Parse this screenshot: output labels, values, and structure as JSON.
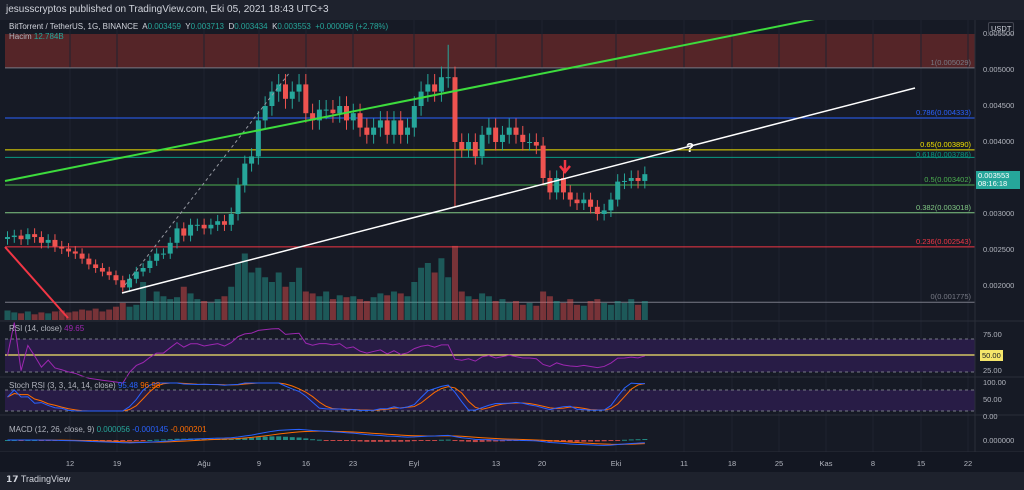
{
  "header": {
    "publish_line": "jesusscryptos published on TradingView.com, Eki 05, 2021 18:43 UTC+3"
  },
  "legend": {
    "symbol": "BitTorrent / TetherUS, 1G, BINANCE",
    "o_label": "A",
    "o": "0.003459",
    "h_label": "Y",
    "h": "0.003713",
    "l_label": "D",
    "l": "0.003434",
    "c_label": "K",
    "c": "0.003553",
    "change": "+0.000096 (+2.78%)",
    "volume_label": "Hacim",
    "volume": "12.784B"
  },
  "price_axis": {
    "unit": "USDT",
    "ticks": [
      "0.005500",
      "0.005000",
      "0.004500",
      "0.004000",
      "0.003000",
      "0.002500",
      "0.002000"
    ],
    "current_price": "0.003553",
    "countdown": "08:16:18"
  },
  "fib_levels": [
    {
      "label": "1(0.005029)",
      "value": 0.005029,
      "color": "#787b86"
    },
    {
      "label": "0.786(0.004333)",
      "value": 0.004333,
      "color": "#2962ff"
    },
    {
      "label": "0.65(0.003890)",
      "value": 0.00389,
      "color": "#f0e000"
    },
    {
      "label": "0.618(0.003786)",
      "value": 0.003786,
      "color": "#089981"
    },
    {
      "label": "0.5(0.003402)",
      "value": 0.003402,
      "color": "#4caf50"
    },
    {
      "label": "0.382(0.003018)",
      "value": 0.003018,
      "color": "#81c784"
    },
    {
      "label": "0.236(0.002543)",
      "value": 0.002543,
      "color": "#f23645"
    },
    {
      "label": "0(0.001775)",
      "value": 0.001775,
      "color": "#787b86"
    }
  ],
  "time_axis": [
    "12",
    "19",
    "Ağu",
    "9",
    "16",
    "23",
    "Eyl",
    "13",
    "20",
    "Eki",
    "11",
    "18",
    "25",
    "Kas",
    "8",
    "15",
    "22"
  ],
  "rsi": {
    "title": "RSI (14, close)",
    "value": "49.65",
    "ticks": [
      "75.00",
      "50.00",
      "25.00"
    ],
    "badge": "50.00"
  },
  "stoch": {
    "title": "Stoch RSI (3, 3, 14, 14, close)",
    "k": "95.48",
    "d": "96.98",
    "ticks": [
      "100.00",
      "50.00",
      "0.00"
    ]
  },
  "macd": {
    "title": "MACD (12, 26, close, 9)",
    "hist": "0.000056",
    "macd": "-0.000145",
    "signal": "-0.000201",
    "tick": "0.000000"
  },
  "annotation": {
    "question": "?"
  },
  "colors": {
    "up": "#26a69a",
    "down": "#ef5350",
    "bg": "#161a25"
  },
  "chart_data": {
    "type": "candlestick",
    "start_date": "Jul 3",
    "closes": [
      2680,
      2700,
      2650,
      2720,
      2680,
      2600,
      2640,
      2550,
      2520,
      2480,
      2450,
      2380,
      2300,
      2250,
      2200,
      2150,
      2080,
      1980,
      2100,
      2200,
      2250,
      2350,
      2450,
      2450,
      2600,
      2800,
      2700,
      2850,
      2850,
      2800,
      2850,
      2900,
      2850,
      3000,
      3400,
      3700,
      3800,
      4300,
      4500,
      4700,
      4800,
      4600,
      4700,
      4800,
      4400,
      4300,
      4450,
      4450,
      4400,
      4500,
      4300,
      4400,
      4200,
      4100,
      4200,
      4300,
      4100,
      4300,
      4100,
      4200,
      4500,
      4700,
      4800,
      4700,
      4900,
      4900,
      4000,
      3900,
      4000,
      3800,
      4100,
      4200,
      4000,
      4100,
      4200,
      4100,
      4000,
      4000,
      3950,
      3500,
      3300,
      3500,
      3300,
      3200,
      3150,
      3200,
      3100,
      3000,
      3050,
      3200,
      3450,
      3459,
      3500,
      3459,
      3553
    ],
    "volumes": [
      10,
      8,
      7,
      9,
      6,
      8,
      7,
      9,
      10,
      8,
      9,
      11,
      10,
      12,
      9,
      11,
      14,
      18,
      14,
      16,
      40,
      20,
      30,
      25,
      22,
      24,
      35,
      28,
      22,
      20,
      18,
      22,
      25,
      35,
      60,
      70,
      50,
      55,
      45,
      40,
      50,
      35,
      40,
      55,
      30,
      28,
      25,
      30,
      22,
      26,
      24,
      25,
      22,
      20,
      24,
      28,
      26,
      30,
      28,
      25,
      40,
      55,
      60,
      50,
      65,
      45,
      78,
      30,
      25,
      22,
      28,
      25,
      20,
      22,
      18,
      20,
      16,
      18,
      15,
      30,
      25,
      20,
      18,
      22,
      16,
      15,
      20,
      22,
      18,
      16,
      20,
      18,
      22,
      16,
      20
    ],
    "units": "1e-6 USDT"
  }
}
